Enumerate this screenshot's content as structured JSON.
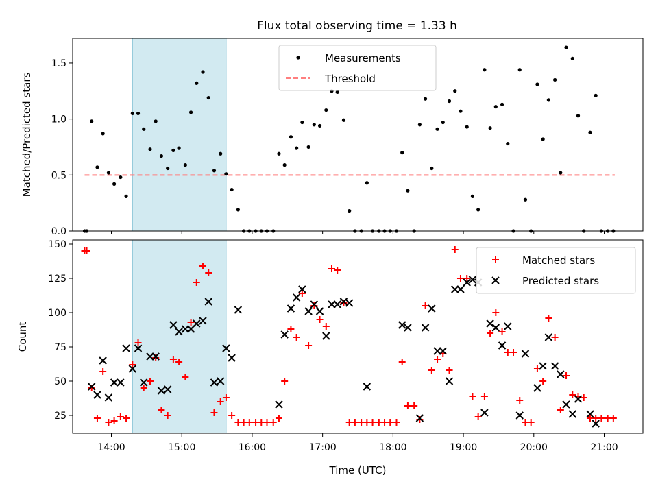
{
  "title": "Flux total observing time = 1.33 h",
  "colors": {
    "measurement": "#000000",
    "threshold": "#ff7f7f",
    "matched": "#ff0000",
    "predicted": "#000000",
    "shade": "#add8e6"
  },
  "chart_data": [
    {
      "type": "scatter",
      "ylabel": "Matched/Predicted stars",
      "xlim": [
        13.45,
        21.55
      ],
      "ylim": [
        0,
        1.72
      ],
      "yticks": [
        {
          "v": 0.0,
          "label": "0.0"
        },
        {
          "v": 0.5,
          "label": "0.5"
        },
        {
          "v": 1.0,
          "label": "1.0"
        },
        {
          "v": 1.5,
          "label": "1.5"
        }
      ],
      "shaded_span": [
        14.3,
        15.63
      ],
      "threshold": {
        "name": "Threshold",
        "y": 0.5,
        "x": [
          13.62,
          21.15
        ]
      },
      "legend": {
        "placement": "upper center",
        "entries": [
          "Measurements",
          "Threshold"
        ]
      },
      "series": [
        {
          "name": "Measurements",
          "marker": "dot",
          "points": [
            [
              13.62,
              0
            ],
            [
              13.65,
              0
            ],
            [
              13.72,
              0.98
            ],
            [
              13.8,
              0.57
            ],
            [
              13.88,
              0.87
            ],
            [
              13.96,
              0.52
            ],
            [
              14.04,
              0.42
            ],
            [
              14.13,
              0.48
            ],
            [
              14.21,
              0.31
            ],
            [
              14.3,
              1.05
            ],
            [
              14.38,
              1.05
            ],
            [
              14.46,
              0.91
            ],
            [
              14.55,
              0.73
            ],
            [
              14.63,
              0.98
            ],
            [
              14.71,
              0.67
            ],
            [
              14.8,
              0.56
            ],
            [
              14.88,
              0.72
            ],
            [
              14.96,
              0.74
            ],
            [
              15.05,
              0.59
            ],
            [
              15.13,
              1.06
            ],
            [
              15.21,
              1.32
            ],
            [
              15.3,
              1.42
            ],
            [
              15.38,
              1.19
            ],
            [
              15.46,
              0.54
            ],
            [
              15.55,
              0.69
            ],
            [
              15.63,
              0.51
            ],
            [
              15.71,
              0.37
            ],
            [
              15.8,
              0.19
            ],
            [
              15.88,
              0
            ],
            [
              15.96,
              0
            ],
            [
              16.05,
              0
            ],
            [
              16.13,
              0
            ],
            [
              16.21,
              0
            ],
            [
              16.3,
              0
            ],
            [
              16.38,
              0.69
            ],
            [
              16.46,
              0.59
            ],
            [
              16.55,
              0.84
            ],
            [
              16.63,
              0.74
            ],
            [
              16.71,
              0.97
            ],
            [
              16.8,
              0.75
            ],
            [
              16.88,
              0.95
            ],
            [
              16.96,
              0.94
            ],
            [
              17.05,
              1.08
            ],
            [
              17.13,
              1.25
            ],
            [
              17.21,
              1.24
            ],
            [
              17.3,
              0.99
            ],
            [
              17.38,
              0.18
            ],
            [
              17.46,
              0
            ],
            [
              17.55,
              0
            ],
            [
              17.63,
              0.43
            ],
            [
              17.71,
              0
            ],
            [
              17.8,
              0
            ],
            [
              17.88,
              0
            ],
            [
              17.96,
              0
            ],
            [
              18.05,
              0
            ],
            [
              18.13,
              0.7
            ],
            [
              18.21,
              0.36
            ],
            [
              18.3,
              0
            ],
            [
              18.38,
              0.95
            ],
            [
              18.46,
              1.18
            ],
            [
              18.55,
              0.56
            ],
            [
              18.63,
              0.91
            ],
            [
              18.71,
              0.97
            ],
            [
              18.8,
              1.16
            ],
            [
              18.88,
              1.25
            ],
            [
              18.96,
              1.07
            ],
            [
              19.05,
              0.93
            ],
            [
              19.13,
              0.31
            ],
            [
              19.21,
              0.19
            ],
            [
              19.3,
              1.44
            ],
            [
              19.38,
              0.92
            ],
            [
              19.46,
              1.11
            ],
            [
              19.55,
              1.13
            ],
            [
              19.63,
              0.78
            ],
            [
              19.71,
              0
            ],
            [
              19.8,
              1.44
            ],
            [
              19.88,
              0.28
            ],
            [
              19.96,
              0
            ],
            [
              20.05,
              1.31
            ],
            [
              20.13,
              0.82
            ],
            [
              20.21,
              1.17
            ],
            [
              20.3,
              1.35
            ],
            [
              20.38,
              0.52
            ],
            [
              20.46,
              1.64
            ],
            [
              20.55,
              1.54
            ],
            [
              20.63,
              1.03
            ],
            [
              20.71,
              0
            ],
            [
              20.8,
              0.88
            ],
            [
              20.88,
              1.21
            ],
            [
              20.96,
              0
            ],
            [
              21.05,
              0
            ],
            [
              21.13,
              0
            ]
          ]
        }
      ]
    },
    {
      "type": "scatter",
      "xlabel": "Time (UTC)",
      "ylabel": "Count",
      "xlim": [
        13.45,
        21.55
      ],
      "ylim": [
        12,
        153
      ],
      "xticks": [
        {
          "v": 14,
          "label": "14:00"
        },
        {
          "v": 15,
          "label": "15:00"
        },
        {
          "v": 16,
          "label": "16:00"
        },
        {
          "v": 17,
          "label": "17:00"
        },
        {
          "v": 18,
          "label": "18:00"
        },
        {
          "v": 19,
          "label": "19:00"
        },
        {
          "v": 20,
          "label": "20:00"
        },
        {
          "v": 21,
          "label": "21:00"
        }
      ],
      "yticks": [
        {
          "v": 25,
          "label": "25"
        },
        {
          "v": 50,
          "label": "50"
        },
        {
          "v": 75,
          "label": "75"
        },
        {
          "v": 100,
          "label": "100"
        },
        {
          "v": 125,
          "label": "125"
        },
        {
          "v": 150,
          "label": "150"
        }
      ],
      "shaded_span": [
        14.3,
        15.63
      ],
      "legend": {
        "placement": "upper right",
        "entries": [
          "Matched stars",
          "Predicted stars"
        ]
      },
      "series": [
        {
          "name": "Matched stars",
          "marker": "plus",
          "points": [
            [
              13.62,
              145
            ],
            [
              13.65,
              145
            ],
            [
              13.72,
              45
            ],
            [
              13.8,
              23
            ],
            [
              13.88,
              57
            ],
            [
              13.96,
              20
            ],
            [
              14.04,
              21
            ],
            [
              14.13,
              24
            ],
            [
              14.21,
              23
            ],
            [
              14.3,
              62
            ],
            [
              14.38,
              78
            ],
            [
              14.46,
              45
            ],
            [
              14.55,
              50
            ],
            [
              14.63,
              67
            ],
            [
              14.71,
              29
            ],
            [
              14.8,
              25
            ],
            [
              14.88,
              66
            ],
            [
              14.96,
              64
            ],
            [
              15.05,
              53
            ],
            [
              15.13,
              93
            ],
            [
              15.21,
              122
            ],
            [
              15.3,
              134
            ],
            [
              15.38,
              129
            ],
            [
              15.46,
              27
            ],
            [
              15.55,
              35
            ],
            [
              15.63,
              38
            ],
            [
              15.71,
              25
            ],
            [
              15.8,
              20
            ],
            [
              15.88,
              20
            ],
            [
              15.96,
              20
            ],
            [
              16.05,
              20
            ],
            [
              16.13,
              20
            ],
            [
              16.21,
              20
            ],
            [
              16.3,
              20
            ],
            [
              16.38,
              23
            ],
            [
              16.46,
              50
            ],
            [
              16.55,
              88
            ],
            [
              16.63,
              82
            ],
            [
              16.71,
              114
            ],
            [
              16.8,
              76
            ],
            [
              16.88,
              105
            ],
            [
              16.96,
              95
            ],
            [
              17.05,
              90
            ],
            [
              17.13,
              132
            ],
            [
              17.21,
              131
            ],
            [
              17.3,
              107
            ],
            [
              17.38,
              20
            ],
            [
              17.46,
              20
            ],
            [
              17.55,
              20
            ],
            [
              17.63,
              20
            ],
            [
              17.71,
              20
            ],
            [
              17.8,
              20
            ],
            [
              17.88,
              20
            ],
            [
              17.96,
              20
            ],
            [
              18.05,
              20
            ],
            [
              18.13,
              64
            ],
            [
              18.21,
              32
            ],
            [
              18.3,
              32
            ],
            [
              18.38,
              22
            ],
            [
              18.46,
              105
            ],
            [
              18.55,
              58
            ],
            [
              18.63,
              66
            ],
            [
              18.71,
              70
            ],
            [
              18.8,
              58
            ],
            [
              18.88,
              146
            ],
            [
              18.96,
              125
            ],
            [
              19.05,
              125
            ],
            [
              19.13,
              39
            ],
            [
              19.21,
              24
            ],
            [
              19.3,
              39
            ],
            [
              19.38,
              85
            ],
            [
              19.46,
              100
            ],
            [
              19.55,
              86
            ],
            [
              19.63,
              71
            ],
            [
              19.71,
              71
            ],
            [
              19.8,
              36
            ],
            [
              19.88,
              20
            ],
            [
              19.96,
              20
            ],
            [
              20.05,
              59
            ],
            [
              20.13,
              50
            ],
            [
              20.21,
              96
            ],
            [
              20.3,
              82
            ],
            [
              20.38,
              29
            ],
            [
              20.46,
              54
            ],
            [
              20.55,
              40
            ],
            [
              20.63,
              39
            ],
            [
              20.71,
              38
            ],
            [
              20.8,
              23
            ],
            [
              20.88,
              23
            ],
            [
              20.96,
              23
            ],
            [
              21.05,
              23
            ],
            [
              21.13,
              23
            ]
          ]
        },
        {
          "name": "Predicted stars",
          "marker": "x",
          "points": [
            [
              13.72,
              46
            ],
            [
              13.8,
              40
            ],
            [
              13.88,
              65
            ],
            [
              13.96,
              38
            ],
            [
              14.04,
              49
            ],
            [
              14.13,
              49
            ],
            [
              14.21,
              74
            ],
            [
              14.3,
              59
            ],
            [
              14.38,
              74
            ],
            [
              14.46,
              49
            ],
            [
              14.55,
              68
            ],
            [
              14.63,
              68
            ],
            [
              14.71,
              43
            ],
            [
              14.8,
              44
            ],
            [
              14.88,
              91
            ],
            [
              14.96,
              86
            ],
            [
              15.05,
              88
            ],
            [
              15.13,
              88
            ],
            [
              15.21,
              92
            ],
            [
              15.3,
              94
            ],
            [
              15.38,
              108
            ],
            [
              15.46,
              49
            ],
            [
              15.55,
              50
            ],
            [
              15.63,
              74
            ],
            [
              15.71,
              67
            ],
            [
              15.8,
              102
            ],
            [
              16.38,
              33
            ],
            [
              16.46,
              84
            ],
            [
              16.55,
              103
            ],
            [
              16.63,
              111
            ],
            [
              16.71,
              117
            ],
            [
              16.8,
              101
            ],
            [
              16.88,
              106
            ],
            [
              16.96,
              101
            ],
            [
              17.05,
              83
            ],
            [
              17.13,
              106
            ],
            [
              17.21,
              106
            ],
            [
              17.3,
              108
            ],
            [
              17.38,
              107
            ],
            [
              17.63,
              46
            ],
            [
              18.13,
              91
            ],
            [
              18.21,
              89
            ],
            [
              18.38,
              23
            ],
            [
              18.46,
              89
            ],
            [
              18.55,
              103
            ],
            [
              18.63,
              72
            ],
            [
              18.71,
              72
            ],
            [
              18.8,
              50
            ],
            [
              18.88,
              117
            ],
            [
              18.96,
              117
            ],
            [
              19.05,
              122
            ],
            [
              19.13,
              124
            ],
            [
              19.21,
              122
            ],
            [
              19.3,
              27
            ],
            [
              19.38,
              92
            ],
            [
              19.46,
              89
            ],
            [
              19.55,
              76
            ],
            [
              19.63,
              90
            ],
            [
              19.8,
              25
            ],
            [
              19.88,
              70
            ],
            [
              20.05,
              45
            ],
            [
              20.13,
              61
            ],
            [
              20.21,
              82
            ],
            [
              20.3,
              61
            ],
            [
              20.38,
              55
            ],
            [
              20.46,
              33
            ],
            [
              20.55,
              26
            ],
            [
              20.63,
              37
            ],
            [
              20.8,
              26
            ],
            [
              20.88,
              19
            ]
          ]
        }
      ]
    }
  ]
}
